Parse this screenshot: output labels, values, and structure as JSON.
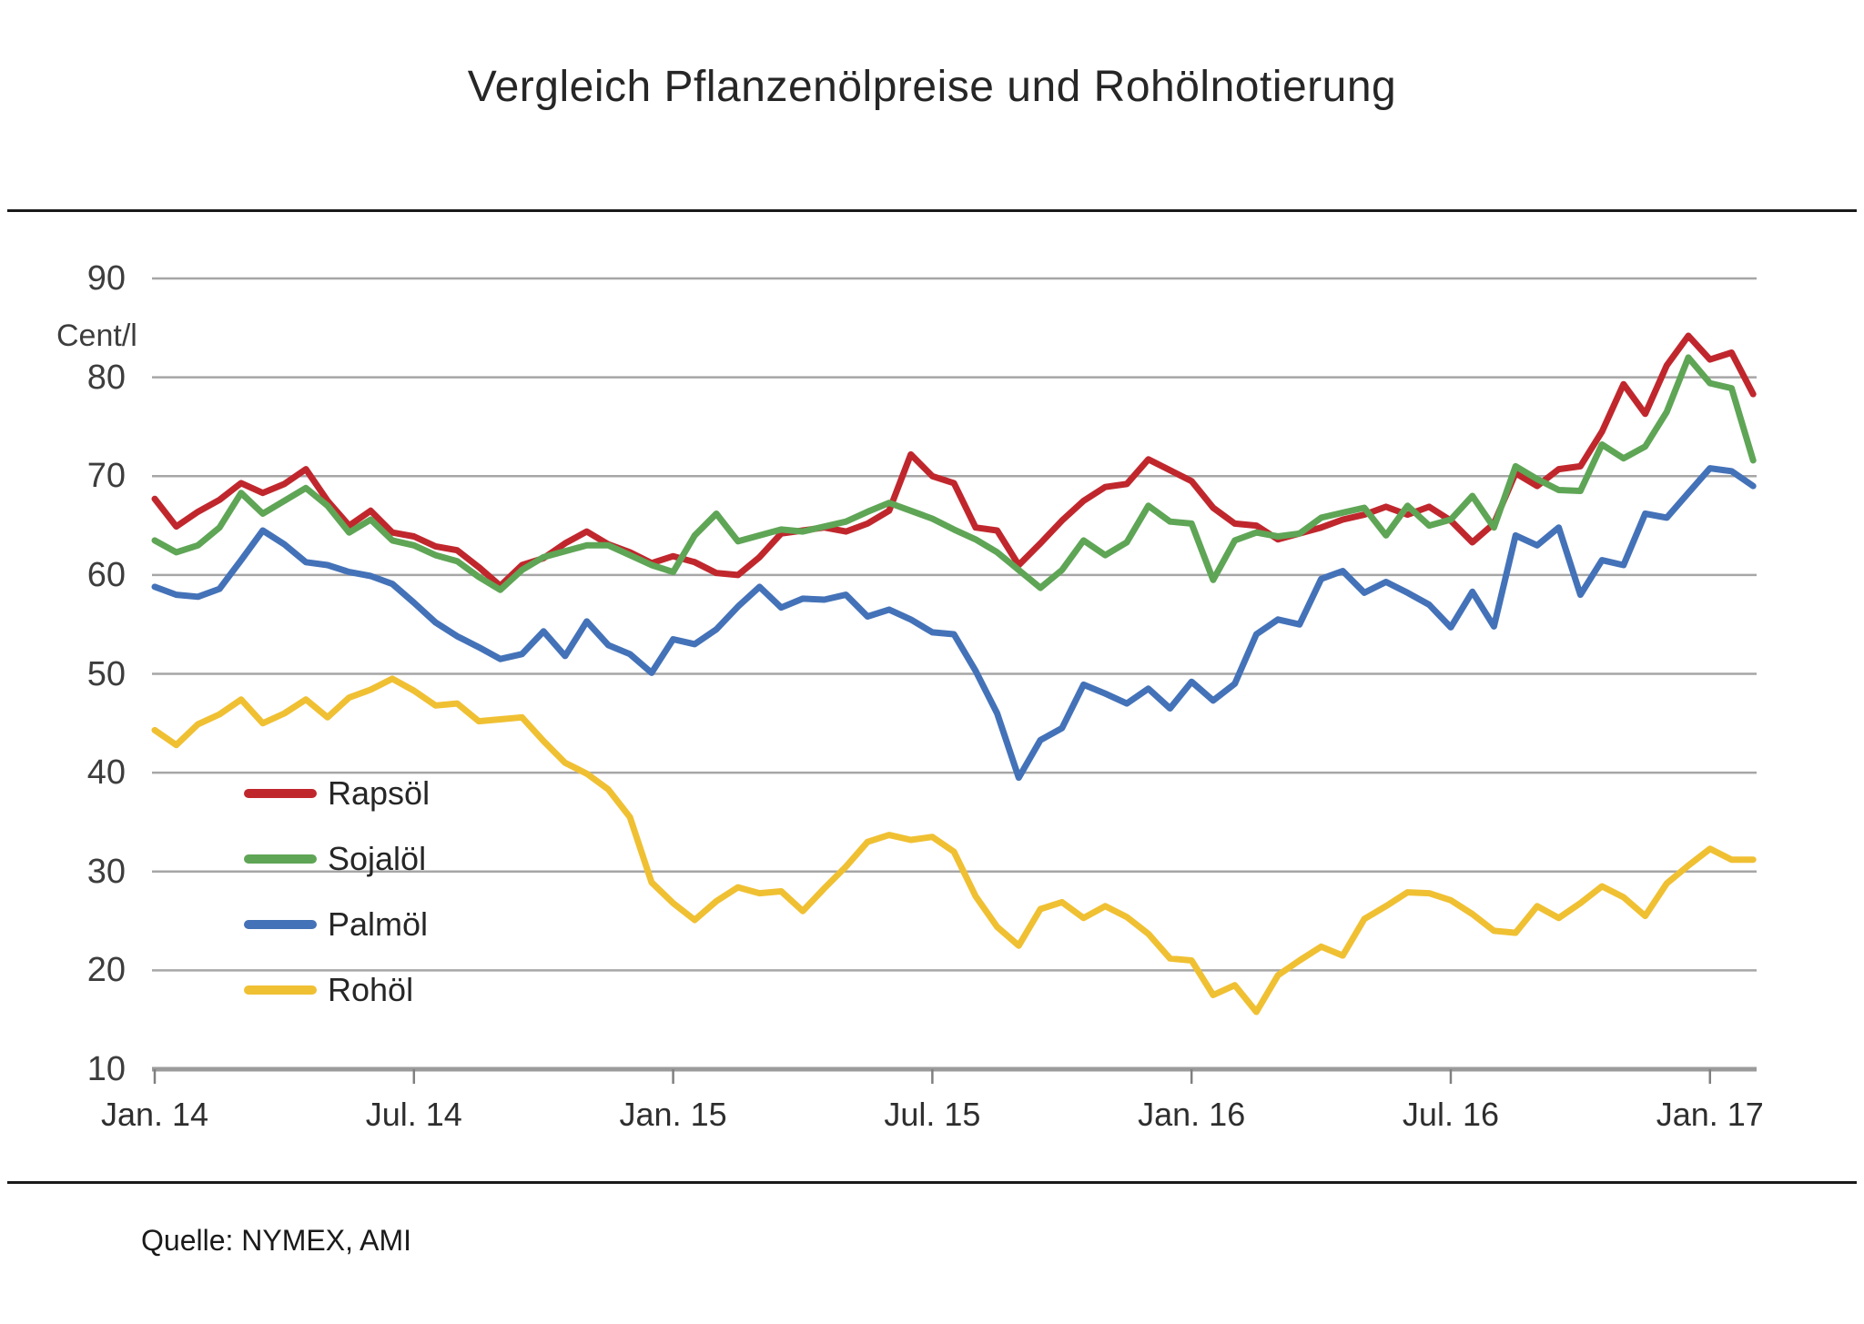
{
  "title": "Vergleich Pflanzenölpreise und Rohölnotierung",
  "source": "Quelle: NYMEX, AMI",
  "y_axis": {
    "unit": "Cent/l",
    "ticks": [
      "90",
      "80",
      "70",
      "60",
      "50",
      "40",
      "30",
      "20",
      "10"
    ]
  },
  "x_axis": {
    "ticks": [
      "Jan. 14",
      "Jul. 14",
      "Jan. 15",
      "Jul. 15",
      "Jan. 16",
      "Jul. 16",
      "Jan. 17"
    ]
  },
  "legend": [
    {
      "label": "Rapsöl",
      "color": "#c0272d"
    },
    {
      "label": "Sojalöl",
      "color": "#5fa556"
    },
    {
      "label": "Palmöl",
      "color": "#4472b8"
    },
    {
      "label": "Rohöl",
      "color": "#f0c033"
    }
  ],
  "chart_data": {
    "type": "line",
    "title": "Vergleich Pflanzenölpreise und Rohölnotierung",
    "xlabel": "",
    "ylabel": "Cent/l",
    "ylim": [
      10,
      90
    ],
    "grid": true,
    "legend_position": "inside-left",
    "x_unit": "months since Jan 2014 (weekly price series, sampled every half month)",
    "x_start": 0,
    "x_step": 0.5,
    "x_tick_months": [
      0,
      6,
      12,
      18,
      24,
      30,
      36
    ],
    "x_tick_labels": [
      "Jan. 14",
      "Jul. 14",
      "Jan. 15",
      "Jul. 15",
      "Jan. 16",
      "Jul. 16",
      "Jan. 17"
    ],
    "series": [
      {
        "name": "Rapsöl",
        "color": "#c0272d",
        "values": [
          67.7,
          64.9,
          66.4,
          67.6,
          69.3,
          68.3,
          69.2,
          70.7,
          67.5,
          65.0,
          66.5,
          64.3,
          63.9,
          62.9,
          62.5,
          60.8,
          58.9,
          61.0,
          61.7,
          63.2,
          64.4,
          63.1,
          62.3,
          61.2,
          61.9,
          61.3,
          60.2,
          60.0,
          61.8,
          64.2,
          64.5,
          64.8,
          64.4,
          65.2,
          66.5,
          72.2,
          70.0,
          69.3,
          64.8,
          64.5,
          61.0,
          63.2,
          65.5,
          67.5,
          68.9,
          69.2,
          71.7,
          70.6,
          69.5,
          66.8,
          65.2,
          65.0,
          63.6,
          64.2,
          64.8,
          65.6,
          66.1,
          66.9,
          66.1,
          66.9,
          65.5,
          63.3,
          65.2,
          70.3,
          69.0,
          70.7,
          71.0,
          74.5,
          79.3,
          76.3,
          81.2,
          84.2,
          81.8,
          82.5,
          78.3
        ]
      },
      {
        "name": "Sojalöl",
        "color": "#5fa556",
        "values": [
          63.5,
          62.3,
          63.0,
          64.8,
          68.3,
          66.2,
          67.5,
          68.8,
          67.0,
          64.3,
          65.6,
          63.5,
          63.0,
          62.0,
          61.4,
          59.8,
          58.5,
          60.5,
          61.8,
          62.4,
          63.0,
          63.0,
          62.0,
          61.0,
          60.3,
          64.0,
          66.2,
          63.4,
          64.0,
          64.6,
          64.4,
          64.9,
          65.4,
          66.4,
          67.3,
          66.5,
          65.7,
          64.6,
          63.6,
          62.3,
          60.5,
          58.7,
          60.5,
          63.5,
          62.0,
          63.3,
          67.0,
          65.4,
          65.2,
          59.5,
          63.5,
          64.3,
          63.9,
          64.2,
          65.8,
          66.3,
          66.8,
          64.0,
          67.0,
          65.0,
          65.6,
          68.0,
          64.8,
          71.0,
          69.7,
          68.6,
          68.5,
          73.2,
          71.8,
          73.0,
          76.5,
          82.0,
          79.4,
          78.9,
          71.6
        ]
      },
      {
        "name": "Palmöl",
        "color": "#4472b8",
        "values": [
          58.8,
          58.0,
          57.8,
          58.6,
          61.5,
          64.5,
          63.1,
          61.3,
          61.0,
          60.3,
          59.9,
          59.1,
          57.2,
          55.2,
          53.8,
          52.7,
          51.5,
          52.0,
          54.3,
          51.8,
          55.3,
          52.9,
          52.0,
          50.1,
          53.5,
          53.0,
          54.5,
          56.8,
          58.8,
          56.7,
          57.6,
          57.5,
          58.0,
          55.8,
          56.5,
          55.5,
          54.2,
          54.0,
          50.3,
          46.0,
          39.5,
          43.3,
          44.5,
          48.9,
          48.0,
          47.0,
          48.5,
          46.5,
          49.2,
          47.3,
          49.0,
          54.0,
          55.5,
          55.0,
          59.6,
          60.4,
          58.2,
          59.3,
          58.2,
          57.0,
          54.7,
          58.3,
          54.8,
          64.0,
          63.0,
          64.8,
          58.0,
          61.5,
          61.0,
          66.2,
          65.8,
          68.3,
          70.8,
          70.5,
          69.0
        ]
      },
      {
        "name": "Rohöl",
        "color": "#f0c033",
        "values": [
          44.3,
          42.8,
          44.9,
          45.9,
          47.4,
          45.0,
          46.0,
          47.4,
          45.6,
          47.6,
          48.4,
          49.5,
          48.3,
          46.8,
          47.0,
          45.2,
          45.4,
          45.6,
          43.2,
          41.0,
          39.9,
          38.3,
          35.5,
          28.9,
          26.8,
          25.1,
          27.0,
          28.4,
          27.8,
          28.0,
          26.0,
          28.3,
          30.5,
          33.0,
          33.7,
          33.2,
          33.5,
          32.0,
          27.5,
          24.4,
          22.5,
          26.2,
          26.9,
          25.3,
          26.5,
          25.4,
          23.7,
          21.2,
          21.0,
          17.5,
          18.5,
          15.8,
          19.5,
          21.0,
          22.4,
          21.5,
          25.2,
          26.5,
          27.9,
          27.8,
          27.1,
          25.7,
          24.0,
          23.8,
          26.5,
          25.3,
          26.8,
          28.5,
          27.4,
          25.5,
          28.8,
          30.6,
          32.3,
          31.2,
          31.2
        ]
      }
    ]
  }
}
